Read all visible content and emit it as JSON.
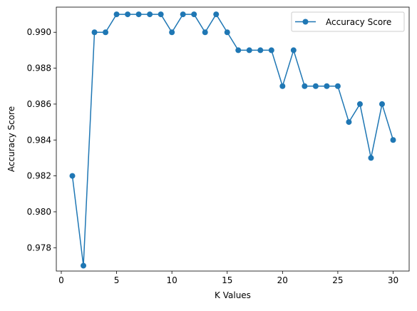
{
  "chart_data": {
    "type": "line",
    "title": "",
    "xlabel": "K Values",
    "ylabel": "Accuracy Score",
    "xlim": [
      -0.45,
      31.45
    ],
    "ylim": [
      0.9767,
      0.9914
    ],
    "xticks": [
      0,
      5,
      10,
      15,
      20,
      25,
      30
    ],
    "xtick_labels": [
      "0",
      "5",
      "10",
      "15",
      "20",
      "25",
      "30"
    ],
    "yticks": [
      0.978,
      0.98,
      0.982,
      0.984,
      0.986,
      0.988,
      0.99
    ],
    "ytick_labels": [
      "0.978",
      "0.980",
      "0.982",
      "0.984",
      "0.986",
      "0.988",
      "0.990"
    ],
    "grid": false,
    "legend": {
      "position": "top-right",
      "entries": [
        "Accuracy Score"
      ]
    },
    "series": [
      {
        "name": "Accuracy Score",
        "color": "#1f77b4",
        "marker": "circle",
        "x": [
          1,
          2,
          3,
          4,
          5,
          6,
          7,
          8,
          9,
          10,
          11,
          12,
          13,
          14,
          15,
          16,
          17,
          18,
          19,
          20,
          21,
          22,
          23,
          24,
          25,
          26,
          27,
          28,
          29,
          30
        ],
        "y": [
          0.982,
          0.977,
          0.99,
          0.99,
          0.991,
          0.991,
          0.991,
          0.991,
          0.991,
          0.99,
          0.991,
          0.991,
          0.99,
          0.991,
          0.99,
          0.989,
          0.989,
          0.989,
          0.989,
          0.987,
          0.989,
          0.987,
          0.987,
          0.987,
          0.987,
          0.985,
          0.986,
          0.983,
          0.986,
          0.984
        ]
      }
    ]
  }
}
